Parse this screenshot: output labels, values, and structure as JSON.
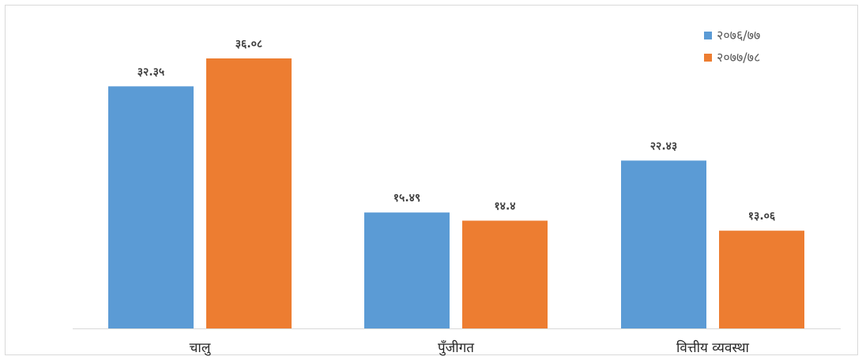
{
  "chart_data": {
    "type": "bar",
    "categories": [
      "चालु",
      "पुँजीगत",
      "वित्तीय व्यवस्था"
    ],
    "series": [
      {
        "name": "२०७६/७७",
        "values": [
          32.35,
          15.49,
          22.43
        ],
        "labels": [
          "३२.३५",
          "१५.४९",
          "२२.४३"
        ],
        "color": "#5b9bd5"
      },
      {
        "name": "२०७७/७८",
        "values": [
          36.08,
          14.4,
          13.06
        ],
        "labels": [
          "३६.०८",
          "१४.४",
          "१३.०६"
        ],
        "color": "#ed7d31"
      }
    ],
    "ylim": [
      0,
      40
    ],
    "grid": false,
    "legend": "top-right",
    "title": "",
    "xlabel": "",
    "ylabel": ""
  }
}
